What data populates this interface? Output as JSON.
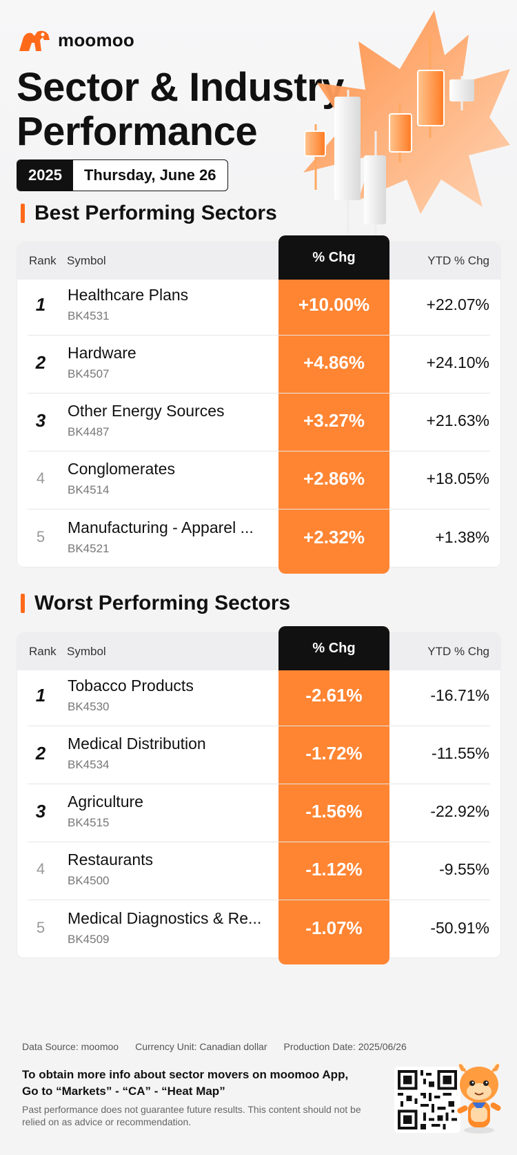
{
  "brand": {
    "name": "moomoo",
    "accent": "#ff6a1a"
  },
  "header": {
    "title_line1": "Sector & Industry",
    "title_line2": "Performance",
    "year": "2025",
    "date": "Thursday, June 26"
  },
  "table_headers": {
    "rank": "Rank",
    "symbol": "Symbol",
    "chg": "% Chg",
    "ytd": "YTD % Chg"
  },
  "best": {
    "title": "Best Performing Sectors",
    "rows": [
      {
        "rank": "1",
        "name": "Healthcare Plans",
        "code": "BK4531",
        "chg": "+10.00%",
        "ytd": "+22.07%"
      },
      {
        "rank": "2",
        "name": "Hardware",
        "code": "BK4507",
        "chg": "+4.86%",
        "ytd": "+24.10%"
      },
      {
        "rank": "3",
        "name": "Other Energy Sources",
        "code": "BK4487",
        "chg": "+3.27%",
        "ytd": "+21.63%"
      },
      {
        "rank": "4",
        "name": "Conglomerates",
        "code": "BK4514",
        "chg": "+2.86%",
        "ytd": "+18.05%"
      },
      {
        "rank": "5",
        "name": "Manufacturing - Apparel ...",
        "code": "BK4521",
        "chg": "+2.32%",
        "ytd": "+1.38%"
      }
    ]
  },
  "worst": {
    "title": "Worst Performing Sectors",
    "rows": [
      {
        "rank": "1",
        "name": "Tobacco Products",
        "code": "BK4530",
        "chg": "-2.61%",
        "ytd": "-16.71%"
      },
      {
        "rank": "2",
        "name": "Medical Distribution",
        "code": "BK4534",
        "chg": "-1.72%",
        "ytd": "-11.55%"
      },
      {
        "rank": "3",
        "name": "Agriculture",
        "code": "BK4515",
        "chg": "-1.56%",
        "ytd": "-22.92%"
      },
      {
        "rank": "4",
        "name": "Restaurants",
        "code": "BK4500",
        "chg": "-1.12%",
        "ytd": "-9.55%"
      },
      {
        "rank": "5",
        "name": "Medical Diagnostics & Re...",
        "code": "BK4509",
        "chg": "-1.07%",
        "ytd": "-50.91%"
      }
    ]
  },
  "footer": {
    "source": "Data Source: moomoo",
    "currency": "Currency Unit: Canadian dollar",
    "production": "Production Date: 2025/06/26",
    "cta_line1": "To obtain more info about sector movers on moomoo App,",
    "cta_line2": "Go to “Markets” - “CA” - “Heat Map”",
    "disclaimer": "Past performance does not guarantee future results. This content should not be relied on as advice or recommendation."
  }
}
